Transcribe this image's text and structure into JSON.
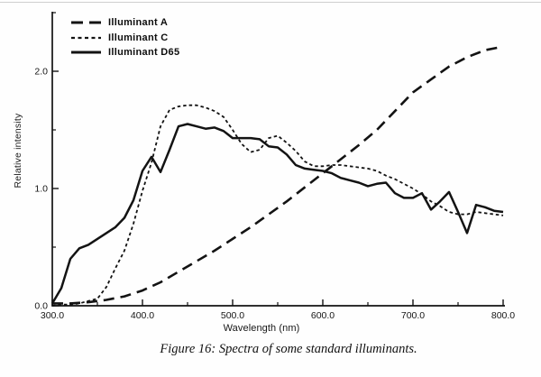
{
  "caption": "Figure 16:  Spectra of some standard illuminants.",
  "chart_data": {
    "type": "line",
    "title": "",
    "xlabel": "Wavelength (nm)",
    "ylabel": "Relative intensity",
    "xlim": [
      300,
      800
    ],
    "ylim": [
      0,
      2.5
    ],
    "grid": false,
    "legend_position": "top-left-inside",
    "color": "#131313",
    "x_ticks": [
      300,
      400,
      500,
      600,
      700,
      800
    ],
    "x_tick_labels": [
      "300.0",
      "400.0",
      "500.0",
      "600.0",
      "700.0",
      "800.0"
    ],
    "x_minor_ticks": [
      350,
      450,
      550,
      650,
      750
    ],
    "y_ticks": [
      0,
      1,
      2
    ],
    "y_tick_labels": [
      "0.0",
      "1.0",
      "2.0"
    ],
    "y_minor_ticks": [
      0.5,
      1.5,
      2.5
    ],
    "series": [
      {
        "name": "Illuminant A",
        "style": "long-dash",
        "x": [
          300,
          320,
          340,
          360,
          380,
          400,
          420,
          440,
          460,
          480,
          500,
          520,
          540,
          560,
          580,
          600,
          620,
          640,
          660,
          680,
          700,
          720,
          740,
          760,
          780,
          800
        ],
        "values": [
          0.02,
          0.02,
          0.03,
          0.05,
          0.08,
          0.13,
          0.2,
          0.29,
          0.38,
          0.47,
          0.57,
          0.67,
          0.78,
          0.89,
          1.01,
          1.13,
          1.25,
          1.37,
          1.5,
          1.66,
          1.82,
          1.93,
          2.04,
          2.12,
          2.18,
          2.21
        ]
      },
      {
        "name": "Illuminant C",
        "style": "short-dash",
        "x": [
          300,
          310,
          320,
          330,
          340,
          350,
          360,
          370,
          380,
          390,
          400,
          410,
          420,
          430,
          440,
          450,
          460,
          470,
          480,
          490,
          500,
          510,
          520,
          530,
          540,
          550,
          560,
          570,
          580,
          590,
          600,
          610,
          620,
          630,
          640,
          650,
          660,
          670,
          680,
          690,
          700,
          710,
          720,
          730,
          740,
          750,
          760,
          770,
          780,
          790,
          800
        ],
        "values": [
          0.0,
          0.01,
          0.01,
          0.02,
          0.04,
          0.06,
          0.16,
          0.32,
          0.47,
          0.7,
          0.98,
          1.22,
          1.53,
          1.67,
          1.7,
          1.71,
          1.71,
          1.69,
          1.66,
          1.61,
          1.5,
          1.38,
          1.31,
          1.33,
          1.43,
          1.45,
          1.39,
          1.32,
          1.23,
          1.19,
          1.19,
          1.2,
          1.2,
          1.19,
          1.18,
          1.17,
          1.15,
          1.11,
          1.08,
          1.04,
          1.0,
          0.95,
          0.89,
          0.85,
          0.8,
          0.78,
          0.78,
          0.8,
          0.79,
          0.78,
          0.77
        ]
      },
      {
        "name": "Illuminant D65",
        "style": "solid",
        "x": [
          300,
          310,
          320,
          330,
          340,
          350,
          360,
          370,
          380,
          390,
          400,
          410,
          420,
          430,
          440,
          450,
          460,
          470,
          480,
          490,
          500,
          510,
          520,
          530,
          540,
          550,
          560,
          570,
          580,
          590,
          600,
          610,
          620,
          630,
          640,
          650,
          660,
          670,
          680,
          690,
          700,
          710,
          720,
          730,
          740,
          750,
          760,
          770,
          780,
          790,
          800
        ],
        "values": [
          0.02,
          0.15,
          0.4,
          0.49,
          0.52,
          0.57,
          0.62,
          0.67,
          0.75,
          0.9,
          1.15,
          1.27,
          1.14,
          1.33,
          1.53,
          1.55,
          1.53,
          1.51,
          1.52,
          1.49,
          1.43,
          1.43,
          1.43,
          1.42,
          1.36,
          1.35,
          1.29,
          1.2,
          1.17,
          1.16,
          1.15,
          1.13,
          1.09,
          1.07,
          1.05,
          1.02,
          1.04,
          1.05,
          0.96,
          0.92,
          0.92,
          0.96,
          0.82,
          0.89,
          0.97,
          0.8,
          0.62,
          0.86,
          0.84,
          0.81,
          0.8
        ]
      }
    ]
  }
}
